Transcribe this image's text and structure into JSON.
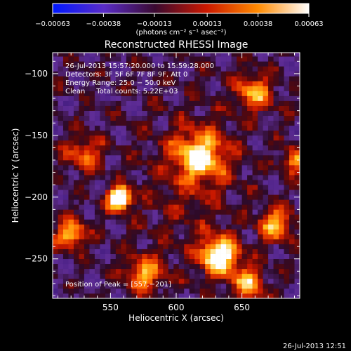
{
  "chart_data": {
    "type": "heatmap",
    "title": "Reconstructed RHESSI Image",
    "xlabel": "Heliocentric X (arcsec)",
    "ylabel": "Heliocentric Y (arcsec)",
    "xlim": [
      506,
      694
    ],
    "ylim": [
      -282,
      -83
    ],
    "x_ticks": [
      550,
      600,
      650
    ],
    "y_ticks": [
      -100,
      -150,
      -200,
      -250
    ],
    "x_tick_labels": [
      "550",
      "600",
      "650"
    ],
    "y_tick_labels": [
      "−100",
      "−150",
      "−200",
      "−250"
    ],
    "colorbar": {
      "range": [
        -0.00063,
        0.00063
      ],
      "ticks": [
        -0.00063,
        -0.00038,
        -0.00013,
        0.00013,
        0.00038,
        0.00063
      ],
      "tick_labels": [
        "−0.00063",
        "−0.00038",
        "−0.00013",
        "0.00013",
        "0.00038",
        "0.00063"
      ],
      "unit_label": "(photons cm⁻² s⁻¹ asec⁻²)",
      "colors": [
        "#0018ff",
        "#5a2cc8",
        "#3a0a30",
        "#cc1800",
        "#ff8a00",
        "#ffffff"
      ]
    },
    "info_lines": [
      "26-Jul-2013 15:57:20.000 to 15:59:28.000",
      "Detectors: 3F 5F 6F 7F 8F 9F, Att 0",
      "Energy Range: 25.0 − 50.0 keV",
      "Clean     Total counts: 5.22E+03"
    ],
    "peak_label": "Position of Peak = [557,−201]",
    "peak_position": [
      557,
      -201
    ],
    "sources": [
      {
        "x": 557,
        "y": -201,
        "amp": 1.0,
        "sigma": 6
      },
      {
        "x": 633,
        "y": -247,
        "amp": 0.75,
        "sigma": 10
      },
      {
        "x": 618,
        "y": -167,
        "amp": 0.55,
        "sigma": 14
      },
      {
        "x": 660,
        "y": -115,
        "amp": 0.45,
        "sigma": 10
      },
      {
        "x": 676,
        "y": -222,
        "amp": 0.5,
        "sigma": 9
      },
      {
        "x": 575,
        "y": -262,
        "amp": 0.45,
        "sigma": 10
      },
      {
        "x": 530,
        "y": -165,
        "amp": 0.35,
        "sigma": 10
      },
      {
        "x": 520,
        "y": -230,
        "amp": 0.55,
        "sigma": 8
      },
      {
        "x": 690,
        "y": -170,
        "amp": 0.45,
        "sigma": 7
      },
      {
        "x": 655,
        "y": -270,
        "amp": 0.5,
        "sigma": 9
      }
    ]
  },
  "footer": {
    "timestamp": "26-Jul-2013 12:51"
  }
}
